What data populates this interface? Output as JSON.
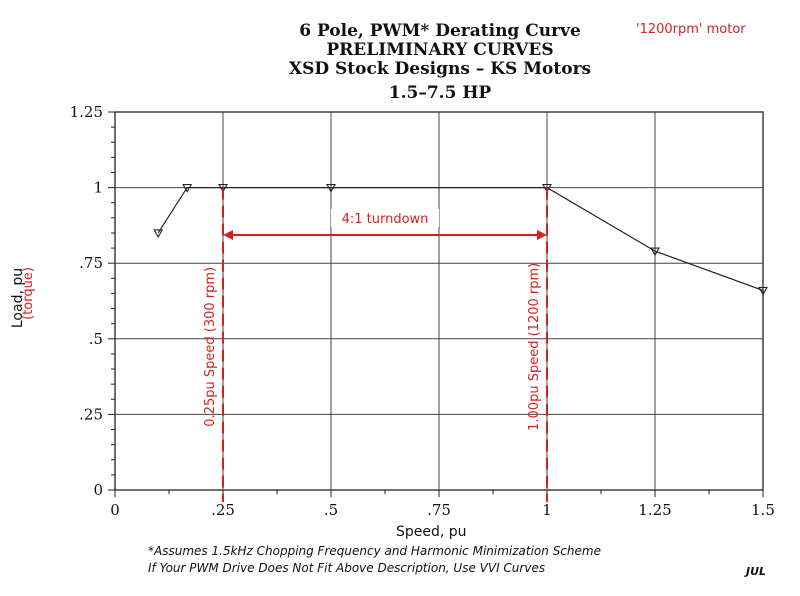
{
  "chart_data": {
    "type": "line",
    "title": "6 Pole, PWM* Derating Curve",
    "subtitles": [
      "PRELIMINARY CURVES",
      "XSD Stock Designs – KS Motors",
      "1.5–7.5 HP"
    ],
    "motor_note": "'1200rpm' motor",
    "xlabel": "Speed, pu",
    "ylabel": "Load, pu",
    "ylabel_note": "(torque)",
    "xlim": [
      0,
      1.5
    ],
    "ylim": [
      0,
      1.25
    ],
    "x_ticks": [
      {
        "v": 0,
        "label": "0"
      },
      {
        "v": 0.25,
        "label": ".25"
      },
      {
        "v": 0.5,
        "label": ".5"
      },
      {
        "v": 0.75,
        "label": ".75"
      },
      {
        "v": 1.0,
        "label": "1"
      },
      {
        "v": 1.25,
        "label": "1.25"
      },
      {
        "v": 1.5,
        "label": "1.5"
      }
    ],
    "y_ticks": [
      {
        "v": 0,
        "label": "0"
      },
      {
        "v": 0.25,
        "label": ".25"
      },
      {
        "v": 0.5,
        "label": ".5"
      },
      {
        "v": 0.75,
        "label": ".75"
      },
      {
        "v": 1.0,
        "label": "1"
      },
      {
        "v": 1.25,
        "label": "1.25"
      }
    ],
    "grid": true,
    "series": [
      {
        "x": [
          0.1,
          0.167,
          0.25,
          0.5,
          1.0,
          1.25,
          1.5
        ],
        "y": [
          0.85,
          1.0,
          1.0,
          1.0,
          1.0,
          0.79,
          0.66
        ],
        "marker": "triangle-down",
        "color": "#222222"
      }
    ],
    "annotations": {
      "turndown_label": "4:1 turndown",
      "turndown_range": [
        0.25,
        1.0
      ],
      "turndown_y": 0.85,
      "vlines": [
        {
          "x": 0.25,
          "label": "0.25pu Speed (300 rpm)"
        },
        {
          "x": 1.0,
          "label": "1.00pu Speed (1200 rpm)"
        }
      ],
      "color": "#d62020"
    },
    "footnotes": [
      "*Assumes 1.5kHz Chopping Frequency and Harmonic Minimization Scheme",
      "If Your PWM Drive Does Not Fit Above Description, Use VVI Curves"
    ],
    "stamp": "JUL"
  }
}
